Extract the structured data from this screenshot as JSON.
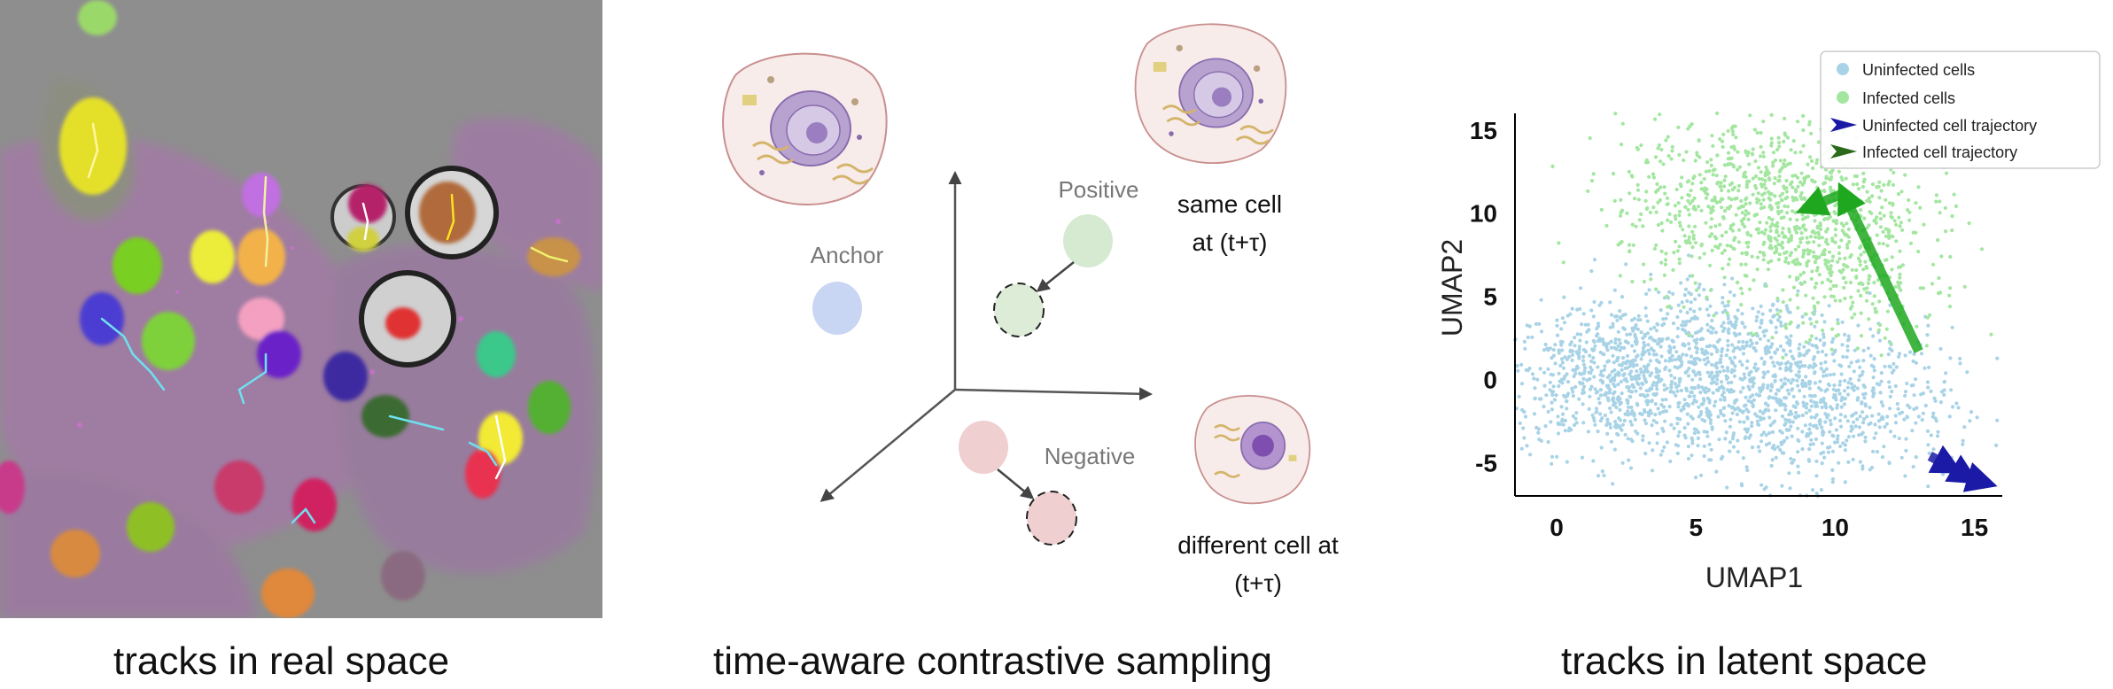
{
  "panels": {
    "real_space": {
      "caption": "tracks in real space"
    },
    "contrastive": {
      "caption": "time-aware contrastive sampling",
      "anchor_label": "Anchor",
      "positive_label": "Positive",
      "negative_label": "Negative",
      "same_cell_line1": "same cell",
      "same_cell_line2": "at (t+τ)",
      "diff_cell_line1": "different cell at",
      "diff_cell_line2": "(t+τ)",
      "colors": {
        "anchor": "#c9d6f3",
        "positive": "#d6ead1",
        "negative": "#efcfcf"
      }
    },
    "latent": {
      "caption": "tracks in latent space"
    }
  },
  "chart_data": {
    "type": "scatter",
    "xlabel": "UMAP1",
    "ylabel": "UMAP2",
    "xticks": [
      0,
      5,
      10,
      15
    ],
    "yticks": [
      15,
      10,
      5,
      0,
      -5
    ],
    "xlim": [
      -1.5,
      16
    ],
    "ylim": [
      -7,
      16
    ],
    "legend_position": "top-right",
    "series": [
      {
        "name": "Uninfected cells",
        "color": "#a8d3e6",
        "clusters": [
          {
            "cx": 2.5,
            "cy": 0,
            "sx": 2.6,
            "sy": 2.2,
            "n": 900
          },
          {
            "cx": 9,
            "cy": -1.5,
            "sx": 2.6,
            "sy": 2.3,
            "n": 800
          },
          {
            "cx": 6,
            "cy": 3,
            "sx": 2.5,
            "sy": 1.8,
            "n": 250
          }
        ]
      },
      {
        "name": "Infected cells",
        "color": "#a3e6a0",
        "clusters": [
          {
            "cx": 7.5,
            "cy": 10.5,
            "sx": 2.6,
            "sy": 2.6,
            "n": 900
          },
          {
            "cx": 10.5,
            "cy": 6.5,
            "sx": 1.6,
            "sy": 2.2,
            "n": 250
          }
        ]
      },
      {
        "name": "Uninfected cell trajectory",
        "color": "#1a1aa6",
        "points": [
          [
            13.4,
            -4.6
          ],
          [
            14.2,
            -5.3
          ],
          [
            14.8,
            -5.9
          ],
          [
            15.4,
            -6.2
          ]
        ]
      },
      {
        "name": "Infected cell trajectory",
        "color": "#1fa81f",
        "points": [
          [
            13.0,
            1.7
          ],
          [
            10.3,
            11.2
          ],
          [
            9.0,
            10.3
          ]
        ]
      }
    ]
  }
}
